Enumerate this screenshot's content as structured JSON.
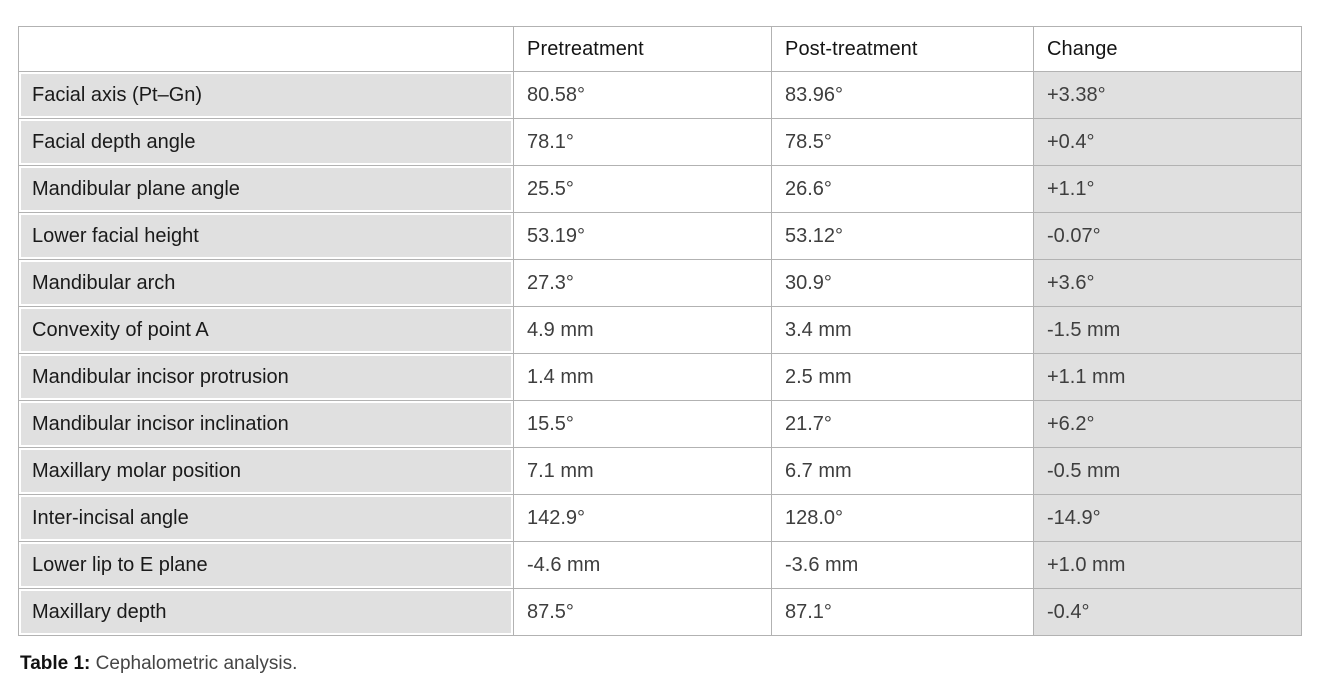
{
  "table": {
    "caption_label": "Table 1:",
    "caption_text": "Cephalometric analysis.",
    "columns": [
      "",
      "Pretreatment",
      "Post-treatment",
      "Change"
    ],
    "rows": [
      {
        "label": "Facial axis (Pt–Gn)",
        "pre": "80.58°",
        "post": "83.96°",
        "change": "+3.38°"
      },
      {
        "label": "Facial depth angle",
        "pre": "78.1°",
        "post": "78.5°",
        "change": "+0.4°"
      },
      {
        "label": "Mandibular plane angle",
        "pre": "25.5°",
        "post": "26.6°",
        "change": "+1.1°"
      },
      {
        "label": "Lower facial height",
        "pre": "53.19°",
        "post": "53.12°",
        "change": "-0.07°"
      },
      {
        "label": "Mandibular arch",
        "pre": "27.3°",
        "post": "30.9°",
        "change": "+3.6°"
      },
      {
        "label": "Convexity of point A",
        "pre": "4.9 mm",
        "post": "3.4 mm",
        "change": "-1.5 mm"
      },
      {
        "label": "Mandibular incisor protrusion",
        "pre": "1.4 mm",
        "post": "2.5 mm",
        "change": "+1.1 mm"
      },
      {
        "label": "Mandibular incisor inclination",
        "pre": "15.5°",
        "post": "21.7°",
        "change": "+6.2°"
      },
      {
        "label": "Maxillary molar position",
        "pre": "7.1 mm",
        "post": "6.7 mm",
        "change": "-0.5 mm"
      },
      {
        "label": "Inter-incisal angle",
        "pre": "142.9°",
        "post": "128.0°",
        "change": "-14.9°"
      },
      {
        "label": "Lower lip to E plane",
        "pre": "-4.6 mm",
        "post": "-3.6 mm",
        "change": "+1.0 mm"
      },
      {
        "label": "Maxillary depth",
        "pre": "87.5°",
        "post": "87.1°",
        "change": "-0.4°"
      }
    ]
  },
  "colors": {
    "shaded_cell": "#e0e0e0",
    "grid_line": "#b2b2b2",
    "label_text": "#1a1a1a",
    "value_text": "#3e3e3e",
    "background": "#ffffff"
  }
}
